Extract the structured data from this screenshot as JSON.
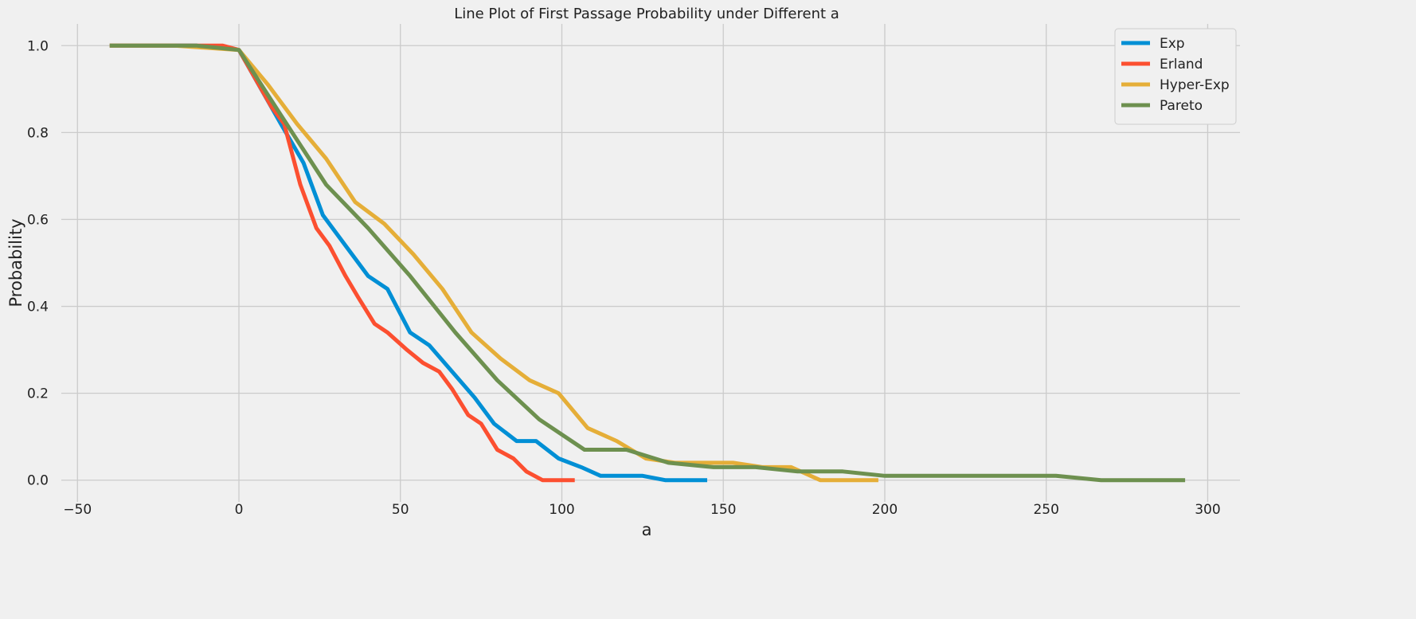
{
  "chart_data": {
    "type": "line",
    "title": "Line Plot of First Passage Probability under Different a",
    "xlabel": "a",
    "ylabel": "Probability",
    "xlim": [
      -55,
      310
    ],
    "ylim": [
      -0.05,
      1.05
    ],
    "xticks": [
      -50,
      0,
      50,
      100,
      150,
      200,
      250,
      300
    ],
    "yticks": [
      0.0,
      0.2,
      0.4,
      0.6,
      0.8,
      1.0
    ],
    "xtick_labels": [
      "−50",
      "0",
      "50",
      "100",
      "150",
      "200",
      "250",
      "300"
    ],
    "ytick_labels": [
      "0.0",
      "0.2",
      "0.4",
      "0.6",
      "0.8",
      "1.0"
    ],
    "grid": true,
    "legend_position": "top-right",
    "series": [
      {
        "name": "Exp",
        "color": "#008fd5",
        "x": [
          -40,
          -20,
          -13,
          0,
          13,
          20,
          26,
          33,
          40,
          46,
          53,
          59,
          66,
          73,
          79,
          86,
          92,
          99,
          106,
          112,
          125,
          132,
          145
        ],
        "y": [
          1.0,
          1.0,
          1.0,
          0.99,
          0.82,
          0.73,
          0.61,
          0.54,
          0.47,
          0.44,
          0.34,
          0.31,
          0.25,
          0.19,
          0.13,
          0.09,
          0.09,
          0.05,
          0.03,
          0.01,
          0.01,
          0.0,
          0.0
        ]
      },
      {
        "name": "Erland",
        "color": "#fc4f30",
        "x": [
          -40,
          -20,
          -5,
          0,
          10,
          14,
          19,
          24,
          28,
          33,
          37,
          42,
          46,
          52,
          57,
          62,
          66,
          71,
          75,
          80,
          85,
          89,
          94,
          98,
          104
        ],
        "y": [
          1.0,
          1.0,
          1.0,
          0.99,
          0.86,
          0.82,
          0.68,
          0.58,
          0.54,
          0.47,
          0.42,
          0.36,
          0.34,
          0.3,
          0.27,
          0.25,
          0.21,
          0.15,
          0.13,
          0.07,
          0.05,
          0.02,
          0.0,
          0.0,
          0.0
        ]
      },
      {
        "name": "Hyper-Exp",
        "color": "#e5ae38",
        "x": [
          -40,
          -20,
          0,
          9,
          18,
          27,
          36,
          45,
          54,
          63,
          72,
          81,
          90,
          99,
          108,
          117,
          126,
          135,
          144,
          153,
          162,
          171,
          180,
          189,
          198
        ],
        "y": [
          1.0,
          1.0,
          0.99,
          0.91,
          0.82,
          0.74,
          0.64,
          0.59,
          0.52,
          0.44,
          0.34,
          0.28,
          0.23,
          0.2,
          0.12,
          0.09,
          0.05,
          0.04,
          0.04,
          0.04,
          0.03,
          0.03,
          0.0,
          0.0,
          0.0
        ]
      },
      {
        "name": "Pareto",
        "color": "#6d904f",
        "x": [
          -40,
          -13,
          0,
          13,
          27,
          40,
          53,
          67,
          80,
          93,
          107,
          120,
          133,
          147,
          160,
          173,
          187,
          200,
          213,
          227,
          240,
          253,
          267,
          280,
          293
        ],
        "y": [
          1.0,
          1.0,
          0.99,
          0.84,
          0.68,
          0.58,
          0.47,
          0.34,
          0.23,
          0.14,
          0.07,
          0.07,
          0.04,
          0.03,
          0.03,
          0.02,
          0.02,
          0.01,
          0.01,
          0.01,
          0.01,
          0.01,
          0.0,
          0.0,
          0.0
        ]
      }
    ]
  }
}
